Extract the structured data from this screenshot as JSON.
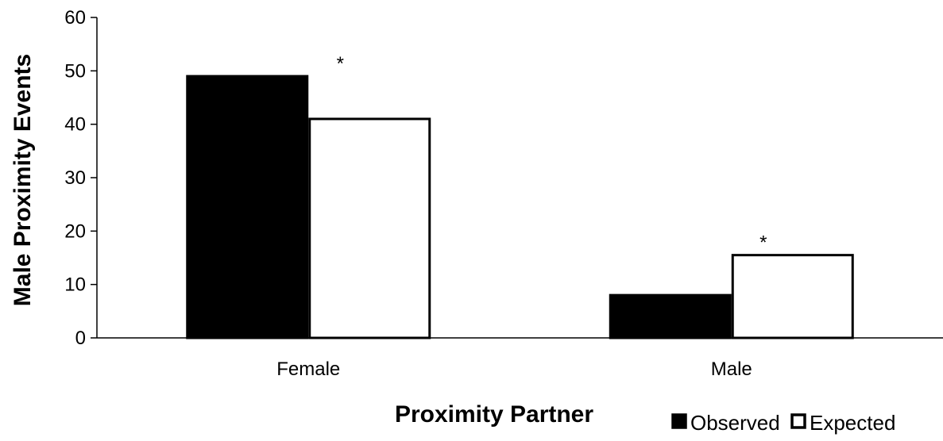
{
  "chart_data": {
    "type": "bar",
    "title": "",
    "xlabel": "Proximity Partner",
    "ylabel": "Male Proximity Events",
    "categories": [
      "Female",
      "Male"
    ],
    "ylim": [
      0,
      60
    ],
    "yticks": [
      0,
      10,
      20,
      30,
      40,
      50,
      60
    ],
    "grid": false,
    "legend_position": "bottom-right",
    "series": [
      {
        "name": "Observed",
        "values": [
          49,
          8
        ],
        "color": "#000000",
        "fill": "solid"
      },
      {
        "name": "Expected",
        "values": [
          41,
          15.5
        ],
        "color": "#000000",
        "fill": "none"
      }
    ],
    "annotations": [
      {
        "category": "Female",
        "text": "*"
      },
      {
        "category": "Male",
        "text": "*"
      }
    ]
  }
}
